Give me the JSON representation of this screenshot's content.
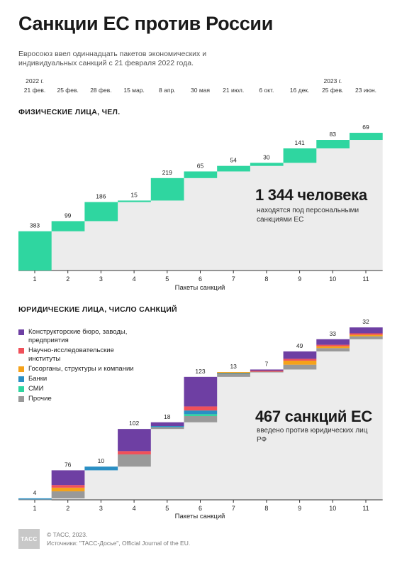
{
  "header": {
    "title": "Санкции ЕС против России",
    "subtitle": "Евросоюз ввел одиннадцать пакетов экономических и индивидуальных санкций с 21 февраля 2022 года."
  },
  "timeline": {
    "years": [
      "2022 г.",
      "2023 г."
    ],
    "dates": [
      "21 фев.",
      "25 фев.",
      "28 фев.",
      "15 мар.",
      "8 апр.",
      "30 мая",
      "21 июл.",
      "6 окт.",
      "16 дек.",
      "25 фев.",
      "23 июн."
    ]
  },
  "highlights": {
    "persons_total": "1 344 человека",
    "persons_caption": "находятся под персональными санкциями ЕС",
    "entities_total": "467 санкций ЕС",
    "entities_caption": "введено против юридических лиц РФ"
  },
  "legend": [
    {
      "label": "Конструкторские бюро, заводы, предприятия",
      "color": "#6e3fa3"
    },
    {
      "label": "Научно-исследовательские институты",
      "color": "#f0505a"
    },
    {
      "label": "Госорганы, структуры и компании",
      "color": "#f5a21a"
    },
    {
      "label": "Банки",
      "color": "#2a8fc4"
    },
    {
      "label": "СМИ",
      "color": "#2fd6a0"
    },
    {
      "label": "Прочие",
      "color": "#999999"
    }
  ],
  "footer": {
    "logo": "ТАСС",
    "copyright": "© ТАСС, 2023.",
    "sources": "Источники: \"ТАСС-Досье\", Official Journal of the EU."
  },
  "chart_data": [
    {
      "type": "bar",
      "title": "ФИЗИЧЕСКИЕ ЛИЦА, ЧЕЛ.",
      "xlabel": "Пакеты санкций",
      "categories": [
        "1",
        "2",
        "3",
        "4",
        "5",
        "6",
        "7",
        "8",
        "9",
        "10",
        "11"
      ],
      "values": [
        383,
        99,
        186,
        15,
        219,
        65,
        54,
        30,
        141,
        83,
        69
      ],
      "cumulative": true,
      "color": "#2fd6a0"
    },
    {
      "type": "bar",
      "title": "ЮРИДИЧЕСКИЕ ЛИЦА, ЧИСЛО САНКЦИЙ",
      "xlabel": "Пакеты санкций",
      "categories": [
        "1",
        "2",
        "3",
        "4",
        "5",
        "6",
        "7",
        "8",
        "9",
        "10",
        "11"
      ],
      "values": [
        4,
        76,
        10,
        102,
        18,
        123,
        13,
        7,
        49,
        33,
        32
      ],
      "cumulative": true,
      "stacked": true,
      "series": [
        {
          "name": "Конструкторские бюро, заводы, предприятия",
          "values": [
            0,
            40,
            0,
            60,
            10,
            80,
            0,
            3,
            20,
            15,
            16
          ]
        },
        {
          "name": "Научно-исследовательские институты",
          "values": [
            0,
            7,
            0,
            9,
            0,
            11,
            0,
            2,
            5,
            4,
            4
          ]
        },
        {
          "name": "Госорганы, структуры и компании",
          "values": [
            0,
            10,
            0,
            0,
            0,
            0,
            2,
            0,
            11,
            5,
            4
          ]
        },
        {
          "name": "Банки",
          "values": [
            2,
            0,
            10,
            0,
            3,
            10,
            1,
            0,
            0,
            0,
            0
          ]
        },
        {
          "name": "СМИ",
          "values": [
            0,
            0,
            0,
            0,
            0,
            5,
            0,
            0,
            0,
            0,
            0
          ]
        },
        {
          "name": "Прочие",
          "values": [
            2,
            19,
            0,
            33,
            5,
            17,
            10,
            2,
            13,
            9,
            8
          ]
        }
      ]
    }
  ]
}
